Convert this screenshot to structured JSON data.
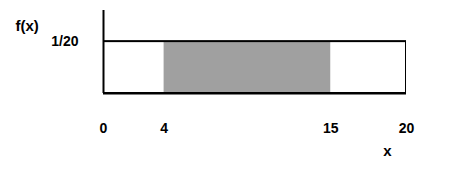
{
  "chart_data": {
    "type": "area",
    "y_label": "f(x)",
    "x_label": "x",
    "x": [
      0,
      20
    ],
    "values": [
      0.05,
      0.05
    ],
    "shaded_range": [
      4,
      15
    ],
    "color": "#a0a0a0",
    "xlim": [
      0,
      20
    ],
    "ylim": [
      0,
      0.08
    ],
    "xticks": [
      0,
      4,
      15,
      20
    ],
    "yticks": [
      {
        "value": 0.05,
        "label": "1/20"
      }
    ]
  }
}
